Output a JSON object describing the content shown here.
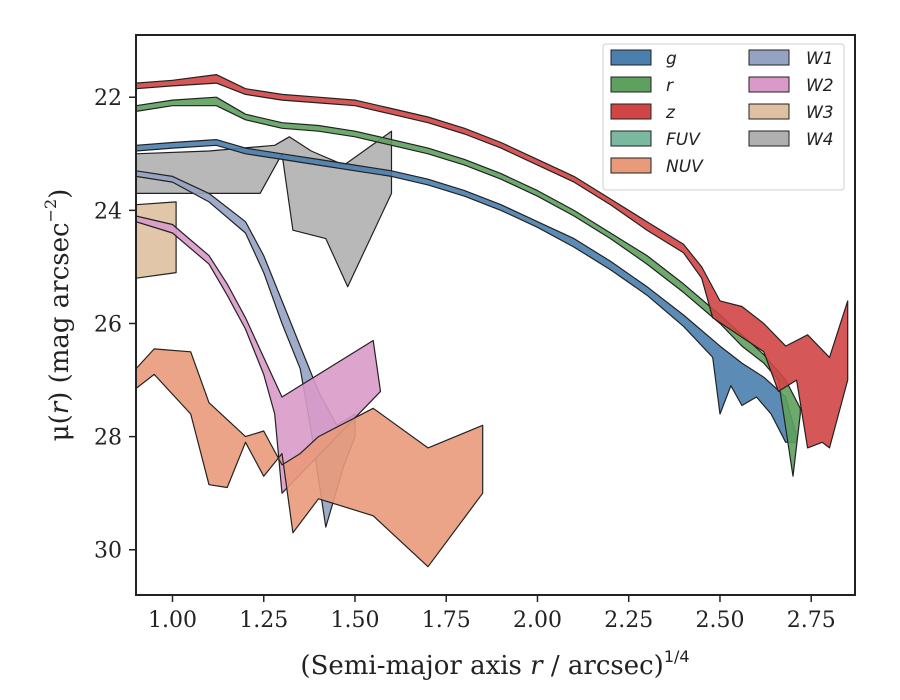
{
  "chart_data": {
    "type": "area",
    "title": "",
    "xlabel": "(Semi-major axis r / arcsec)1/4",
    "xlabel_parts": {
      "pre": "(Semi-major axis ",
      "var": "r",
      "post": " / arcsec)",
      "sup": "1/4"
    },
    "ylabel": "μ(r) (mag arcsec−2)",
    "ylabel_parts": {
      "pre": "μ(",
      "var": "r",
      "post": ") (mag arcsec",
      "sup": "−2",
      "close": ")"
    },
    "xlim": [
      0.9,
      2.87
    ],
    "ylim": [
      30.8,
      20.9
    ],
    "y_inverted": true,
    "grid": false,
    "legend_position": "top-right",
    "xticks": [
      1.0,
      1.25,
      1.5,
      1.75,
      2.0,
      2.25,
      2.5,
      2.75
    ],
    "xtick_labels": [
      "1.00",
      "1.25",
      "1.50",
      "1.75",
      "2.00",
      "2.25",
      "2.50",
      "2.75"
    ],
    "yticks": [
      22,
      24,
      26,
      28,
      30
    ],
    "ytick_labels": [
      "22",
      "24",
      "26",
      "28",
      "30"
    ],
    "series": [
      {
        "name": "W4",
        "color": "#b0b0b0",
        "upper": [
          [
            0.9,
            23.0
          ],
          [
            1.1,
            22.95
          ],
          [
            1.28,
            22.85
          ],
          [
            1.32,
            22.7
          ],
          [
            1.38,
            22.95
          ],
          [
            1.47,
            23.2
          ],
          [
            1.6,
            22.6
          ]
        ],
        "lower": [
          [
            0.9,
            23.7
          ],
          [
            1.24,
            23.7
          ],
          [
            1.3,
            23.0
          ],
          [
            1.33,
            24.35
          ],
          [
            1.42,
            24.5
          ],
          [
            1.48,
            25.35
          ],
          [
            1.6,
            23.7
          ]
        ]
      },
      {
        "name": "W3",
        "color": "#dfc0a0",
        "upper": [
          [
            0.9,
            23.9
          ],
          [
            1.01,
            23.85
          ]
        ],
        "lower": [
          [
            0.9,
            25.2
          ],
          [
            1.01,
            25.1
          ]
        ]
      },
      {
        "name": "g",
        "color": "#4a7fae",
        "upper": [
          [
            0.9,
            22.85
          ],
          [
            1.0,
            22.8
          ],
          [
            1.12,
            22.75
          ],
          [
            1.2,
            22.9
          ],
          [
            1.3,
            23.0
          ],
          [
            1.4,
            23.1
          ],
          [
            1.5,
            23.2
          ],
          [
            1.6,
            23.3
          ],
          [
            1.7,
            23.45
          ],
          [
            1.8,
            23.65
          ],
          [
            1.9,
            23.9
          ],
          [
            2.0,
            24.2
          ],
          [
            2.1,
            24.5
          ],
          [
            2.2,
            24.9
          ],
          [
            2.3,
            25.35
          ],
          [
            2.4,
            25.85
          ],
          [
            2.5,
            26.4
          ],
          [
            2.56,
            26.7
          ],
          [
            2.62,
            26.95
          ],
          [
            2.68,
            27.3
          ],
          [
            2.71,
            28.0
          ]
        ],
        "lower": [
          [
            0.9,
            22.95
          ],
          [
            1.0,
            22.9
          ],
          [
            1.12,
            22.85
          ],
          [
            1.2,
            23.0
          ],
          [
            1.3,
            23.1
          ],
          [
            1.4,
            23.2
          ],
          [
            1.5,
            23.3
          ],
          [
            1.6,
            23.4
          ],
          [
            1.7,
            23.55
          ],
          [
            1.8,
            23.75
          ],
          [
            1.9,
            24.0
          ],
          [
            2.0,
            24.3
          ],
          [
            2.1,
            24.65
          ],
          [
            2.2,
            25.05
          ],
          [
            2.3,
            25.5
          ],
          [
            2.4,
            26.05
          ],
          [
            2.48,
            26.6
          ],
          [
            2.5,
            27.6
          ],
          [
            2.53,
            27.1
          ],
          [
            2.56,
            27.45
          ],
          [
            2.6,
            27.3
          ],
          [
            2.64,
            27.6
          ],
          [
            2.68,
            28.1
          ],
          [
            2.71,
            28.1
          ]
        ]
      },
      {
        "name": "r",
        "color": "#5ea05e",
        "upper": [
          [
            0.9,
            22.15
          ],
          [
            1.0,
            22.05
          ],
          [
            1.12,
            22.0
          ],
          [
            1.2,
            22.3
          ],
          [
            1.3,
            22.45
          ],
          [
            1.4,
            22.5
          ],
          [
            1.5,
            22.6
          ],
          [
            1.6,
            22.75
          ],
          [
            1.7,
            22.9
          ],
          [
            1.8,
            23.1
          ],
          [
            1.9,
            23.35
          ],
          [
            2.0,
            23.65
          ],
          [
            2.1,
            24.0
          ],
          [
            2.2,
            24.4
          ],
          [
            2.3,
            24.8
          ],
          [
            2.4,
            25.3
          ],
          [
            2.5,
            25.85
          ],
          [
            2.56,
            26.2
          ],
          [
            2.62,
            26.55
          ],
          [
            2.68,
            27.0
          ],
          [
            2.72,
            27.5
          ]
        ],
        "lower": [
          [
            0.9,
            22.25
          ],
          [
            1.0,
            22.15
          ],
          [
            1.12,
            22.15
          ],
          [
            1.2,
            22.4
          ],
          [
            1.3,
            22.55
          ],
          [
            1.4,
            22.6
          ],
          [
            1.5,
            22.7
          ],
          [
            1.6,
            22.85
          ],
          [
            1.7,
            23.0
          ],
          [
            1.8,
            23.2
          ],
          [
            1.9,
            23.45
          ],
          [
            2.0,
            23.75
          ],
          [
            2.1,
            24.1
          ],
          [
            2.2,
            24.5
          ],
          [
            2.3,
            24.95
          ],
          [
            2.4,
            25.45
          ],
          [
            2.5,
            26.0
          ],
          [
            2.56,
            26.4
          ],
          [
            2.62,
            26.7
          ],
          [
            2.66,
            27.0
          ],
          [
            2.7,
            28.7
          ],
          [
            2.72,
            27.6
          ]
        ]
      },
      {
        "name": "z",
        "color": "#d04545",
        "upper": [
          [
            0.9,
            21.75
          ],
          [
            1.0,
            21.7
          ],
          [
            1.12,
            21.6
          ],
          [
            1.2,
            21.85
          ],
          [
            1.3,
            21.95
          ],
          [
            1.4,
            22.0
          ],
          [
            1.5,
            22.05
          ],
          [
            1.6,
            22.2
          ],
          [
            1.7,
            22.35
          ],
          [
            1.8,
            22.55
          ],
          [
            1.9,
            22.8
          ],
          [
            2.0,
            23.1
          ],
          [
            2.1,
            23.4
          ],
          [
            2.2,
            23.8
          ],
          [
            2.3,
            24.2
          ],
          [
            2.4,
            24.6
          ],
          [
            2.45,
            25.0
          ],
          [
            2.5,
            25.6
          ],
          [
            2.56,
            25.7
          ],
          [
            2.62,
            26.0
          ],
          [
            2.68,
            26.4
          ],
          [
            2.74,
            26.2
          ],
          [
            2.8,
            26.6
          ],
          [
            2.85,
            25.6
          ]
        ],
        "lower": [
          [
            0.9,
            21.85
          ],
          [
            1.0,
            21.8
          ],
          [
            1.12,
            21.75
          ],
          [
            1.2,
            21.95
          ],
          [
            1.3,
            22.05
          ],
          [
            1.4,
            22.1
          ],
          [
            1.5,
            22.15
          ],
          [
            1.6,
            22.3
          ],
          [
            1.7,
            22.45
          ],
          [
            1.8,
            22.65
          ],
          [
            1.9,
            22.9
          ],
          [
            2.0,
            23.2
          ],
          [
            2.1,
            23.5
          ],
          [
            2.2,
            23.9
          ],
          [
            2.3,
            24.35
          ],
          [
            2.4,
            24.75
          ],
          [
            2.45,
            25.2
          ],
          [
            2.48,
            25.9
          ],
          [
            2.55,
            26.2
          ],
          [
            2.62,
            26.5
          ],
          [
            2.66,
            27.2
          ],
          [
            2.71,
            27.0
          ],
          [
            2.74,
            28.2
          ],
          [
            2.78,
            28.1
          ],
          [
            2.8,
            28.2
          ],
          [
            2.85,
            27.0
          ]
        ]
      },
      {
        "name": "FUV",
        "color": "#7ab8a0",
        "upper": [],
        "lower": []
      },
      {
        "name": "W1",
        "color": "#95a3c3",
        "upper": [
          [
            0.9,
            23.3
          ],
          [
            1.0,
            23.4
          ],
          [
            1.1,
            23.7
          ],
          [
            1.2,
            24.2
          ],
          [
            1.25,
            24.8
          ],
          [
            1.3,
            25.6
          ],
          [
            1.35,
            26.4
          ],
          [
            1.4,
            27.2
          ],
          [
            1.45,
            27.8
          ],
          [
            1.5,
            27.6
          ]
        ],
        "lower": [
          [
            0.9,
            23.4
          ],
          [
            1.0,
            23.5
          ],
          [
            1.1,
            23.85
          ],
          [
            1.2,
            24.4
          ],
          [
            1.25,
            25.1
          ],
          [
            1.3,
            26.0
          ],
          [
            1.35,
            26.8
          ],
          [
            1.38,
            27.9
          ],
          [
            1.42,
            29.6
          ],
          [
            1.47,
            28.5
          ],
          [
            1.5,
            28.0
          ]
        ]
      },
      {
        "name": "W2",
        "color": "#d99ac9",
        "upper": [
          [
            0.9,
            24.1
          ],
          [
            1.0,
            24.25
          ],
          [
            1.1,
            24.8
          ],
          [
            1.15,
            25.3
          ],
          [
            1.2,
            25.9
          ],
          [
            1.25,
            26.6
          ],
          [
            1.3,
            27.3
          ],
          [
            1.55,
            26.3
          ]
        ],
        "lower": [
          [
            0.9,
            24.2
          ],
          [
            1.0,
            24.4
          ],
          [
            1.1,
            24.95
          ],
          [
            1.15,
            25.5
          ],
          [
            1.2,
            26.1
          ],
          [
            1.25,
            26.9
          ],
          [
            1.28,
            27.6
          ],
          [
            1.3,
            29.0
          ],
          [
            1.57,
            27.2
          ]
        ]
      },
      {
        "name": "NUV",
        "color": "#e99a7a",
        "upper": [
          [
            0.9,
            26.8
          ],
          [
            0.95,
            26.45
          ],
          [
            1.05,
            26.5
          ],
          [
            1.1,
            27.4
          ],
          [
            1.15,
            27.7
          ],
          [
            1.2,
            28.0
          ],
          [
            1.25,
            27.9
          ],
          [
            1.3,
            28.5
          ],
          [
            1.35,
            28.3
          ],
          [
            1.4,
            28.0
          ],
          [
            1.55,
            27.5
          ],
          [
            1.7,
            28.2
          ],
          [
            1.85,
            27.8
          ]
        ],
        "lower": [
          [
            0.9,
            27.15
          ],
          [
            0.95,
            26.9
          ],
          [
            1.05,
            27.6
          ],
          [
            1.1,
            28.85
          ],
          [
            1.15,
            28.9
          ],
          [
            1.2,
            28.1
          ],
          [
            1.25,
            28.7
          ],
          [
            1.3,
            28.3
          ],
          [
            1.33,
            29.7
          ],
          [
            1.4,
            29.1
          ],
          [
            1.55,
            29.4
          ],
          [
            1.7,
            30.3
          ],
          [
            1.85,
            29.0
          ]
        ]
      }
    ],
    "legend": {
      "col1": [
        {
          "name": "g",
          "color": "#4a7fae"
        },
        {
          "name": "r",
          "color": "#5ea05e"
        },
        {
          "name": "z",
          "color": "#d04545"
        },
        {
          "name": "FUV",
          "color": "#7ab8a0"
        },
        {
          "name": "NUV",
          "color": "#e99a7a"
        }
      ],
      "col2": [
        {
          "name": "W1",
          "color": "#95a3c3"
        },
        {
          "name": "W2",
          "color": "#d99ac9"
        },
        {
          "name": "W3",
          "color": "#dfc0a0"
        },
        {
          "name": "W4",
          "color": "#b0b0b0"
        }
      ]
    }
  }
}
